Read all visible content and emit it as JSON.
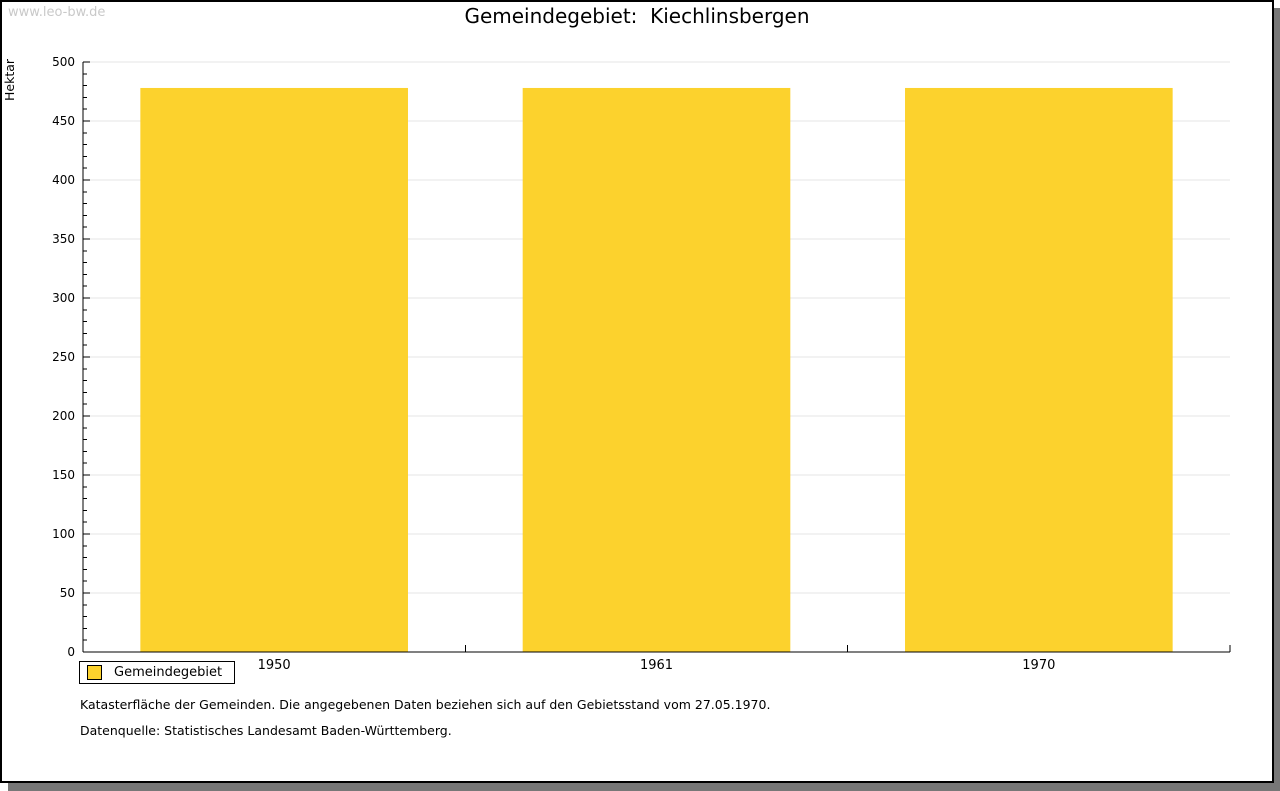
{
  "watermark": "www.leo-bw.de",
  "header": {
    "title": "Gemeindegebiet:  Kiechlinsbergen"
  },
  "chart_data": {
    "type": "bar",
    "categories": [
      "1950",
      "1961",
      "1970"
    ],
    "series": [
      {
        "name": "Gemeindegebiet",
        "values": [
          478,
          478,
          478
        ]
      }
    ],
    "title": "Gemeindegebiet: Kiechlinsbergen",
    "xlabel": "",
    "ylabel": "Hektar",
    "ylim": [
      0,
      500
    ],
    "ytick_major": 50,
    "ytick_minor": 10,
    "ytick_labels": [
      "0",
      "50",
      "100",
      "150",
      "200",
      "250",
      "300",
      "350",
      "400",
      "450",
      "500"
    ],
    "grid": true,
    "legend_position": "bottom-left",
    "unit": "Hektar"
  },
  "legend": {
    "label": "Gemeindegebiet"
  },
  "footer": {
    "line1": "Katasterfläche der Gemeinden. Die angegebenen Daten beziehen sich auf den Gebietsstand vom 27.05.1970.",
    "line2": "Datenquelle: Statistisches Landesamt Baden-Württemberg."
  },
  "colors": {
    "bar_fill": "#FCD22D",
    "grid_line": "#E4E4E4",
    "axis_line": "#000000",
    "text": "#000000",
    "watermark": "#C9C9C9",
    "frame_shadow": "#777777"
  }
}
